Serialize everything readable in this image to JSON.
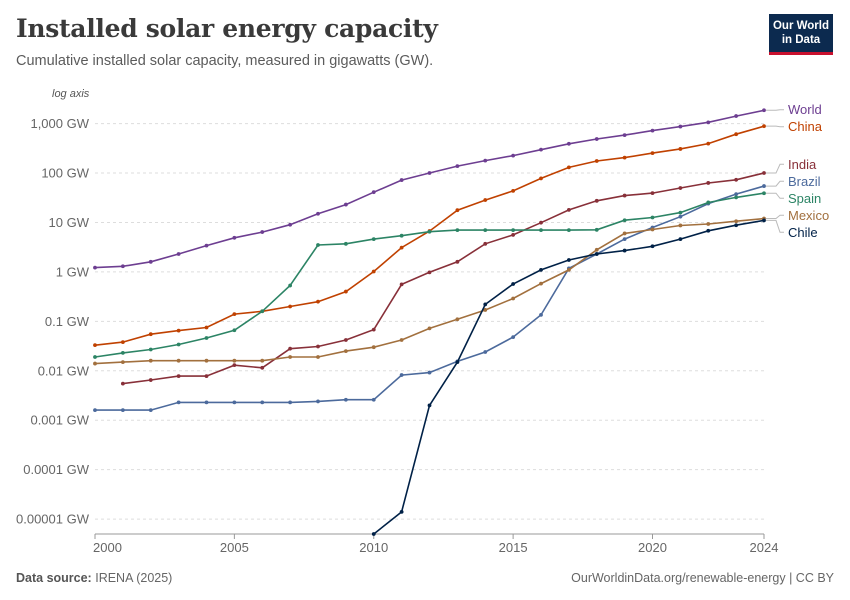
{
  "header": {
    "title": "Installed solar energy capacity",
    "subtitle": "Cumulative installed solar capacity, measured in gigawatts (GW).",
    "logo_line1": "Our World",
    "logo_line2": "in Data"
  },
  "footer": {
    "source_label": "Data source:",
    "source_value": "IRENA (2025)",
    "url": "OurWorldinData.org/renewable-energy | CC BY"
  },
  "chart_data": {
    "type": "line",
    "title": "Installed solar energy capacity",
    "subtitle": "Cumulative installed solar capacity, measured in gigawatts (GW).",
    "scale_note": "log axis",
    "y_scale": "log",
    "ylim": [
      5e-06,
      3000
    ],
    "xlim": [
      2000,
      2024
    ],
    "y_ticks": [
      {
        "value": 1000,
        "label": "1,000 GW"
      },
      {
        "value": 100,
        "label": "100 GW"
      },
      {
        "value": 10,
        "label": "10 GW"
      },
      {
        "value": 1,
        "label": "1 GW"
      },
      {
        "value": 0.1,
        "label": "0.1 GW"
      },
      {
        "value": 0.01,
        "label": "0.01 GW"
      },
      {
        "value": 0.001,
        "label": "0.001 GW"
      },
      {
        "value": 0.0001,
        "label": "0.0001 GW"
      },
      {
        "value": 1e-05,
        "label": "0.00001 GW"
      }
    ],
    "x_ticks": [
      {
        "value": 2000,
        "label": "2000"
      },
      {
        "value": 2005,
        "label": "2005"
      },
      {
        "value": 2010,
        "label": "2010"
      },
      {
        "value": 2015,
        "label": "2015"
      },
      {
        "value": 2020,
        "label": "2020"
      },
      {
        "value": 2024,
        "label": "2024"
      }
    ],
    "grid": true,
    "legend": "right-end labels",
    "series": [
      {
        "name": "World",
        "color": "#6d3e91",
        "points": [
          [
            2000,
            1.22
          ],
          [
            2001,
            1.3
          ],
          [
            2002,
            1.6
          ],
          [
            2003,
            2.3
          ],
          [
            2004,
            3.4
          ],
          [
            2005,
            4.9
          ],
          [
            2006,
            6.4
          ],
          [
            2007,
            9
          ],
          [
            2008,
            15
          ],
          [
            2009,
            23
          ],
          [
            2010,
            41
          ],
          [
            2011,
            72
          ],
          [
            2012,
            100
          ],
          [
            2013,
            138
          ],
          [
            2014,
            178
          ],
          [
            2015,
            225
          ],
          [
            2016,
            297
          ],
          [
            2017,
            390
          ],
          [
            2018,
            487
          ],
          [
            2019,
            585
          ],
          [
            2020,
            720
          ],
          [
            2021,
            870
          ],
          [
            2022,
            1060
          ],
          [
            2023,
            1420
          ],
          [
            2024,
            1860
          ]
        ]
      },
      {
        "name": "China",
        "color": "#c04100",
        "points": [
          [
            2000,
            0.033
          ],
          [
            2001,
            0.038
          ],
          [
            2002,
            0.055
          ],
          [
            2003,
            0.065
          ],
          [
            2004,
            0.075
          ],
          [
            2005,
            0.14
          ],
          [
            2006,
            0.16
          ],
          [
            2007,
            0.2
          ],
          [
            2008,
            0.25
          ],
          [
            2009,
            0.4
          ],
          [
            2010,
            1.02
          ],
          [
            2011,
            3.1
          ],
          [
            2012,
            6.7
          ],
          [
            2013,
            17.7
          ],
          [
            2014,
            28.4
          ],
          [
            2015,
            43.5
          ],
          [
            2016,
            77.8
          ],
          [
            2017,
            130
          ],
          [
            2018,
            175
          ],
          [
            2019,
            205
          ],
          [
            2020,
            253
          ],
          [
            2021,
            307
          ],
          [
            2022,
            393
          ],
          [
            2023,
            610
          ],
          [
            2024,
            887
          ]
        ]
      },
      {
        "name": "India",
        "color": "#883039",
        "points": [
          [
            2001,
            0.0055
          ],
          [
            2002,
            0.0065
          ],
          [
            2003,
            0.0078
          ],
          [
            2004,
            0.0078
          ],
          [
            2005,
            0.013
          ],
          [
            2006,
            0.0115
          ],
          [
            2007,
            0.028
          ],
          [
            2008,
            0.031
          ],
          [
            2009,
            0.042
          ],
          [
            2010,
            0.068
          ],
          [
            2011,
            0.56
          ],
          [
            2012,
            0.98
          ],
          [
            2013,
            1.6
          ],
          [
            2014,
            3.7
          ],
          [
            2015,
            5.6
          ],
          [
            2016,
            9.9
          ],
          [
            2017,
            18
          ],
          [
            2018,
            27.4
          ],
          [
            2019,
            35
          ],
          [
            2020,
            39.2
          ],
          [
            2021,
            49.7
          ],
          [
            2022,
            63
          ],
          [
            2023,
            73
          ],
          [
            2024,
            100
          ]
        ]
      },
      {
        "name": "Brazil",
        "color": "#4c6a9c",
        "points": [
          [
            2000,
            0.0016
          ],
          [
            2001,
            0.0016
          ],
          [
            2002,
            0.0016
          ],
          [
            2003,
            0.0023
          ],
          [
            2004,
            0.0023
          ],
          [
            2005,
            0.0023
          ],
          [
            2006,
            0.0023
          ],
          [
            2007,
            0.0023
          ],
          [
            2008,
            0.0024
          ],
          [
            2009,
            0.0026
          ],
          [
            2010,
            0.0026
          ],
          [
            2011,
            0.0082
          ],
          [
            2012,
            0.0092
          ],
          [
            2013,
            0.0155
          ],
          [
            2014,
            0.024
          ],
          [
            2015,
            0.048
          ],
          [
            2016,
            0.135
          ],
          [
            2017,
            1.18
          ],
          [
            2018,
            2.3
          ],
          [
            2019,
            4.6
          ],
          [
            2020,
            7.9
          ],
          [
            2021,
            13.1
          ],
          [
            2022,
            24.1
          ],
          [
            2023,
            37.4
          ],
          [
            2024,
            54.5
          ]
        ]
      },
      {
        "name": "Spain",
        "color": "#2c8465",
        "points": [
          [
            2000,
            0.019
          ],
          [
            2001,
            0.023
          ],
          [
            2002,
            0.027
          ],
          [
            2003,
            0.034
          ],
          [
            2004,
            0.046
          ],
          [
            2005,
            0.066
          ],
          [
            2006,
            0.16
          ],
          [
            2007,
            0.53
          ],
          [
            2008,
            3.5
          ],
          [
            2009,
            3.7
          ],
          [
            2010,
            4.6
          ],
          [
            2011,
            5.4
          ],
          [
            2012,
            6.5
          ],
          [
            2013,
            7
          ],
          [
            2014,
            7
          ],
          [
            2015,
            7
          ],
          [
            2016,
            7
          ],
          [
            2017,
            7
          ],
          [
            2018,
            7.1
          ],
          [
            2019,
            11.1
          ],
          [
            2020,
            12.6
          ],
          [
            2021,
            15.8
          ],
          [
            2022,
            25.4
          ],
          [
            2023,
            32.1
          ],
          [
            2024,
            39
          ]
        ]
      },
      {
        "name": "Mexico",
        "color": "#a2703e",
        "points": [
          [
            2000,
            0.014
          ],
          [
            2001,
            0.015
          ],
          [
            2002,
            0.016
          ],
          [
            2003,
            0.016
          ],
          [
            2004,
            0.016
          ],
          [
            2005,
            0.016
          ],
          [
            2006,
            0.016
          ],
          [
            2007,
            0.019
          ],
          [
            2008,
            0.019
          ],
          [
            2009,
            0.025
          ],
          [
            2010,
            0.03
          ],
          [
            2011,
            0.042
          ],
          [
            2012,
            0.072
          ],
          [
            2013,
            0.11
          ],
          [
            2014,
            0.17
          ],
          [
            2015,
            0.29
          ],
          [
            2016,
            0.58
          ],
          [
            2017,
            1.1
          ],
          [
            2018,
            2.8
          ],
          [
            2019,
            6
          ],
          [
            2020,
            7.2
          ],
          [
            2021,
            8.7
          ],
          [
            2022,
            9.3
          ],
          [
            2023,
            10.6
          ],
          [
            2024,
            12
          ]
        ]
      },
      {
        "name": "Chile",
        "color": "#002147",
        "points": [
          [
            2010,
            4e-06
          ],
          [
            2011,
            1.4e-05
          ],
          [
            2012,
            0.002
          ],
          [
            2013,
            0.015
          ],
          [
            2014,
            0.22
          ],
          [
            2015,
            0.57
          ],
          [
            2016,
            1.1
          ],
          [
            2017,
            1.74
          ],
          [
            2018,
            2.3
          ],
          [
            2019,
            2.7
          ],
          [
            2020,
            3.3
          ],
          [
            2021,
            4.6
          ],
          [
            2022,
            6.8
          ],
          [
            2023,
            8.8
          ],
          [
            2024,
            11
          ]
        ]
      }
    ]
  }
}
